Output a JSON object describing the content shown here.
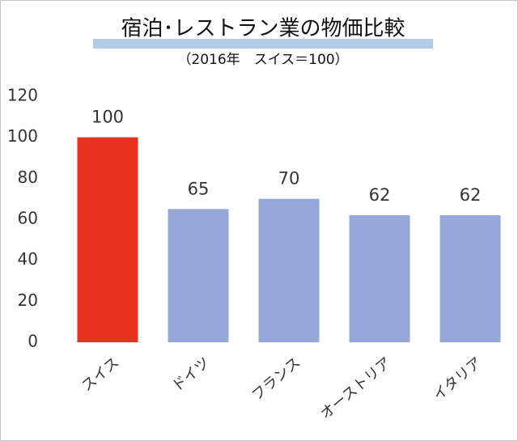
{
  "chart_data": {
    "type": "bar",
    "title": "宿泊･レストラン業の物価比較",
    "subtitle": "（2016年　スイス＝100）",
    "categories": [
      "スイス",
      "ドイツ",
      "フランス",
      "オーストリア",
      "イタリア"
    ],
    "values": [
      100,
      65,
      70,
      62,
      62
    ],
    "colors": [
      "#e8311f",
      "#95a8d9",
      "#95a8d9",
      "#95a8d9",
      "#95a8d9"
    ],
    "ylim": [
      0,
      120
    ],
    "yticks": [
      0,
      20,
      40,
      60,
      80,
      100,
      120
    ],
    "grid": false
  }
}
